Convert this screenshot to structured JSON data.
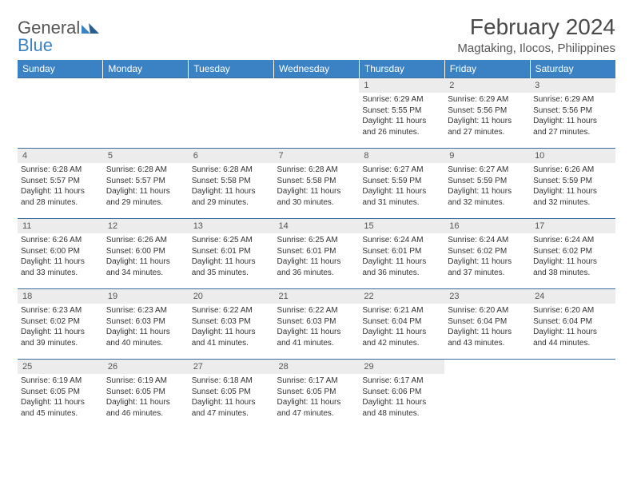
{
  "brand": {
    "name_part1": "General",
    "name_part2": "Blue"
  },
  "title": "February 2024",
  "location": "Magtaking, Ilocos, Philippines",
  "colors": {
    "header_bg": "#3b82c4",
    "header_text": "#ffffff",
    "daynum_bg": "#ececec",
    "row_divider": "#3b6ea0",
    "text": "#333333",
    "brand_blue": "#3b82c4",
    "brand_gray": "#555555",
    "background": "#ffffff"
  },
  "day_headers": [
    "Sunday",
    "Monday",
    "Tuesday",
    "Wednesday",
    "Thursday",
    "Friday",
    "Saturday"
  ],
  "weeks": [
    [
      null,
      null,
      null,
      null,
      {
        "num": "1",
        "sunrise": "6:29 AM",
        "sunset": "5:55 PM",
        "daylight": "11 hours and 26 minutes."
      },
      {
        "num": "2",
        "sunrise": "6:29 AM",
        "sunset": "5:56 PM",
        "daylight": "11 hours and 27 minutes."
      },
      {
        "num": "3",
        "sunrise": "6:29 AM",
        "sunset": "5:56 PM",
        "daylight": "11 hours and 27 minutes."
      }
    ],
    [
      {
        "num": "4",
        "sunrise": "6:28 AM",
        "sunset": "5:57 PM",
        "daylight": "11 hours and 28 minutes."
      },
      {
        "num": "5",
        "sunrise": "6:28 AM",
        "sunset": "5:57 PM",
        "daylight": "11 hours and 29 minutes."
      },
      {
        "num": "6",
        "sunrise": "6:28 AM",
        "sunset": "5:58 PM",
        "daylight": "11 hours and 29 minutes."
      },
      {
        "num": "7",
        "sunrise": "6:28 AM",
        "sunset": "5:58 PM",
        "daylight": "11 hours and 30 minutes."
      },
      {
        "num": "8",
        "sunrise": "6:27 AM",
        "sunset": "5:59 PM",
        "daylight": "11 hours and 31 minutes."
      },
      {
        "num": "9",
        "sunrise": "6:27 AM",
        "sunset": "5:59 PM",
        "daylight": "11 hours and 32 minutes."
      },
      {
        "num": "10",
        "sunrise": "6:26 AM",
        "sunset": "5:59 PM",
        "daylight": "11 hours and 32 minutes."
      }
    ],
    [
      {
        "num": "11",
        "sunrise": "6:26 AM",
        "sunset": "6:00 PM",
        "daylight": "11 hours and 33 minutes."
      },
      {
        "num": "12",
        "sunrise": "6:26 AM",
        "sunset": "6:00 PM",
        "daylight": "11 hours and 34 minutes."
      },
      {
        "num": "13",
        "sunrise": "6:25 AM",
        "sunset": "6:01 PM",
        "daylight": "11 hours and 35 minutes."
      },
      {
        "num": "14",
        "sunrise": "6:25 AM",
        "sunset": "6:01 PM",
        "daylight": "11 hours and 36 minutes."
      },
      {
        "num": "15",
        "sunrise": "6:24 AM",
        "sunset": "6:01 PM",
        "daylight": "11 hours and 36 minutes."
      },
      {
        "num": "16",
        "sunrise": "6:24 AM",
        "sunset": "6:02 PM",
        "daylight": "11 hours and 37 minutes."
      },
      {
        "num": "17",
        "sunrise": "6:24 AM",
        "sunset": "6:02 PM",
        "daylight": "11 hours and 38 minutes."
      }
    ],
    [
      {
        "num": "18",
        "sunrise": "6:23 AM",
        "sunset": "6:02 PM",
        "daylight": "11 hours and 39 minutes."
      },
      {
        "num": "19",
        "sunrise": "6:23 AM",
        "sunset": "6:03 PM",
        "daylight": "11 hours and 40 minutes."
      },
      {
        "num": "20",
        "sunrise": "6:22 AM",
        "sunset": "6:03 PM",
        "daylight": "11 hours and 41 minutes."
      },
      {
        "num": "21",
        "sunrise": "6:22 AM",
        "sunset": "6:03 PM",
        "daylight": "11 hours and 41 minutes."
      },
      {
        "num": "22",
        "sunrise": "6:21 AM",
        "sunset": "6:04 PM",
        "daylight": "11 hours and 42 minutes."
      },
      {
        "num": "23",
        "sunrise": "6:20 AM",
        "sunset": "6:04 PM",
        "daylight": "11 hours and 43 minutes."
      },
      {
        "num": "24",
        "sunrise": "6:20 AM",
        "sunset": "6:04 PM",
        "daylight": "11 hours and 44 minutes."
      }
    ],
    [
      {
        "num": "25",
        "sunrise": "6:19 AM",
        "sunset": "6:05 PM",
        "daylight": "11 hours and 45 minutes."
      },
      {
        "num": "26",
        "sunrise": "6:19 AM",
        "sunset": "6:05 PM",
        "daylight": "11 hours and 46 minutes."
      },
      {
        "num": "27",
        "sunrise": "6:18 AM",
        "sunset": "6:05 PM",
        "daylight": "11 hours and 47 minutes."
      },
      {
        "num": "28",
        "sunrise": "6:17 AM",
        "sunset": "6:05 PM",
        "daylight": "11 hours and 47 minutes."
      },
      {
        "num": "29",
        "sunrise": "6:17 AM",
        "sunset": "6:06 PM",
        "daylight": "11 hours and 48 minutes."
      },
      null,
      null
    ]
  ],
  "labels": {
    "sunrise": "Sunrise:",
    "sunset": "Sunset:",
    "daylight": "Daylight:"
  }
}
